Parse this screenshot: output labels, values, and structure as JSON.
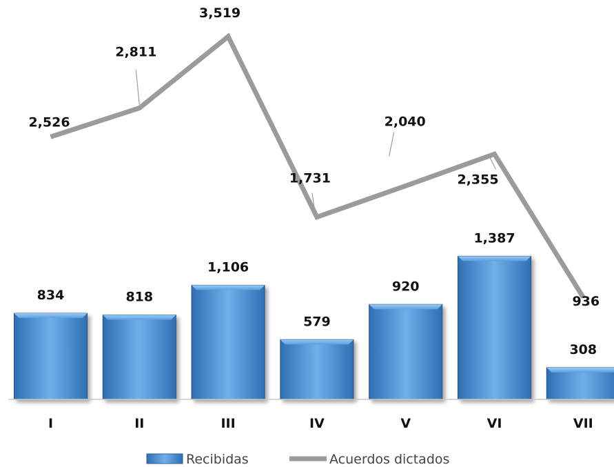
{
  "chart_data": {
    "type": "bar",
    "categories": [
      "I",
      "II",
      "III",
      "IV",
      "V",
      "VI",
      "VII"
    ],
    "series": [
      {
        "name": "Recibidas",
        "type": "bar",
        "values": [
          834,
          818,
          1106,
          579,
          920,
          1387,
          308
        ],
        "labels": [
          "834",
          "818",
          "1,106",
          "579",
          "920",
          "1,387",
          "308"
        ],
        "color": "#4a90d6"
      },
      {
        "name": "Acuerdos dictados",
        "type": "line",
        "values": [
          2526,
          2811,
          3519,
          1731,
          2040,
          2355,
          936
        ],
        "labels": [
          "2,526",
          "2,811",
          "3,519",
          "1,731",
          "2,040",
          "2,355",
          "936"
        ],
        "color": "#9b9b9b"
      }
    ],
    "legend_position": "bottom",
    "grid": false
  }
}
